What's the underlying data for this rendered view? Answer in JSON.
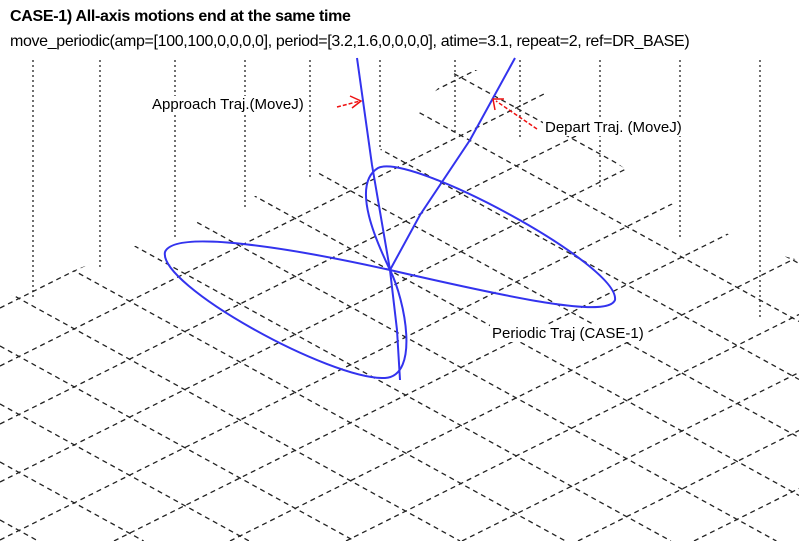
{
  "header": {
    "title": "CASE-1) All-axis motions end at the same time",
    "code": "move_periodic(amp=[100,100,0,0,0,0], period=[3.2,1.6,0,0,0,0], atime=3.1, repeat=2, ref=DR_BASE)"
  },
  "labels": {
    "approach": "Approach Traj.(MoveJ)",
    "depart": "Depart  Traj. (MoveJ)",
    "periodic": "Periodic Traj (CASE-1)"
  },
  "colors": {
    "trajectory": "#3333ee",
    "arrow": "#ee1111",
    "grid": "#222222"
  }
}
